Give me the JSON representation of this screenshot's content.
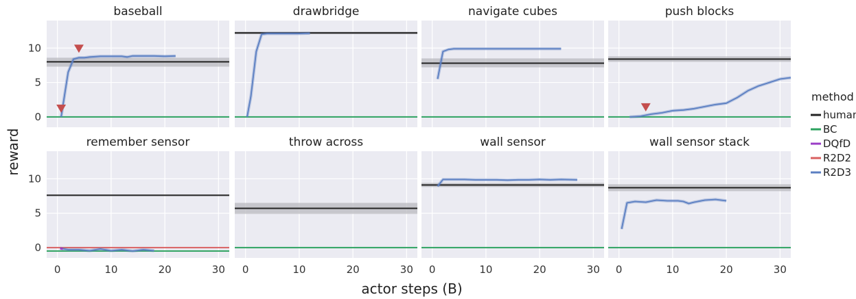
{
  "figure": {
    "xlabel": "actor steps (B)",
    "ylabel": "reward",
    "legend": {
      "title": "method",
      "entries": [
        {
          "name": "human",
          "color": "#222222"
        },
        {
          "name": "BC",
          "color": "#2ca25f"
        },
        {
          "name": "DQfD",
          "color": "#9a3cc6"
        },
        {
          "name": "R2D2",
          "color": "#d95f5f"
        },
        {
          "name": "R2D3",
          "color": "#5b7fc2"
        }
      ]
    },
    "colors": {
      "panel_bg": "#ebebf2",
      "grid": "#ffffff",
      "band": "#b9b9bf",
      "marker": "#c44e4e"
    }
  },
  "chart_data": [
    {
      "type": "line",
      "title": "baseball",
      "xlim": [
        -2,
        32
      ],
      "ylim": [
        -1.5,
        14
      ],
      "xticks": [
        0,
        10,
        20,
        30
      ],
      "yticks": [
        0,
        5,
        10
      ],
      "human": {
        "value": 8.0,
        "band": [
          7.3,
          8.6
        ]
      },
      "bc": 0,
      "r2d3": {
        "x": [
          0.7,
          1.3,
          2,
          3,
          4,
          5,
          6,
          8,
          10,
          12,
          13,
          14,
          16,
          18,
          20,
          22
        ],
        "y": [
          0,
          3,
          6.5,
          8.4,
          8.6,
          8.6,
          8.7,
          8.8,
          8.8,
          8.8,
          8.7,
          8.85,
          8.85,
          8.85,
          8.8,
          8.85
        ]
      },
      "markers": [
        {
          "x": 0.7,
          "y": 1.2
        },
        {
          "x": 4,
          "y": 9.9
        }
      ]
    },
    {
      "type": "line",
      "title": "drawbridge",
      "xlim": [
        -2,
        32
      ],
      "ylim": [
        -1.5,
        14
      ],
      "xticks": [
        0,
        10,
        20,
        30
      ],
      "yticks": [
        0,
        5,
        10
      ],
      "human": {
        "value": 12.2,
        "band": [
          12.0,
          12.4
        ]
      },
      "bc": 0,
      "r2d3": {
        "x": [
          0.3,
          1,
          2,
          3,
          4,
          5,
          6,
          8,
          10,
          12
        ],
        "y": [
          0,
          3,
          9.5,
          12.0,
          12.1,
          12.1,
          12.1,
          12.1,
          12.1,
          12.15
        ]
      },
      "markers": []
    },
    {
      "type": "line",
      "title": "navigate cubes",
      "xlim": [
        -2,
        32
      ],
      "ylim": [
        -1.5,
        14
      ],
      "xticks": [
        0,
        10,
        20,
        30
      ],
      "yticks": [
        0,
        5,
        10
      ],
      "human": {
        "value": 7.8,
        "band": [
          7.2,
          8.5
        ]
      },
      "bc": 0,
      "r2d3": {
        "x": [
          1,
          2,
          3,
          4,
          6,
          8,
          10,
          14,
          18,
          22,
          24
        ],
        "y": [
          5.5,
          9.5,
          9.8,
          9.9,
          9.9,
          9.9,
          9.9,
          9.9,
          9.9,
          9.9,
          9.9
        ]
      },
      "markers": []
    },
    {
      "type": "line",
      "title": "push blocks",
      "xlim": [
        -2,
        32
      ],
      "ylim": [
        -1.5,
        14
      ],
      "xticks": [
        0,
        10,
        20,
        30
      ],
      "yticks": [
        0,
        5,
        10
      ],
      "human": {
        "value": 8.4,
        "band": [
          8.0,
          8.8
        ]
      },
      "bc": 0,
      "r2d3": {
        "x": [
          2,
          4,
          6,
          8,
          10,
          12,
          14,
          16,
          18,
          20,
          22,
          24,
          26,
          28,
          30,
          32
        ],
        "y": [
          0,
          0.1,
          0.4,
          0.6,
          0.9,
          1.0,
          1.2,
          1.5,
          1.8,
          2.0,
          2.8,
          3.8,
          4.5,
          5.0,
          5.5,
          5.7
        ]
      },
      "markers": [
        {
          "x": 5,
          "y": 1.4
        }
      ]
    },
    {
      "type": "line",
      "title": "remember sensor",
      "xlim": [
        -2,
        32
      ],
      "ylim": [
        -1.5,
        14
      ],
      "xticks": [
        0,
        10,
        20,
        30
      ],
      "yticks": [
        0,
        5,
        10
      ],
      "human": {
        "value": 7.6,
        "band": [
          7.5,
          7.7
        ]
      },
      "bc": -0.5,
      "r2d2": 0,
      "r2d3": {
        "x": [
          0.5,
          2,
          4,
          6,
          8,
          10,
          12,
          14,
          16,
          18
        ],
        "y": [
          -0.1,
          -0.3,
          -0.3,
          -0.45,
          -0.2,
          -0.45,
          -0.3,
          -0.5,
          -0.3,
          -0.45
        ]
      },
      "dqfd": {
        "x": [
          0.5,
          1
        ],
        "y": [
          -0.1,
          -0.2
        ]
      },
      "markers": []
    },
    {
      "type": "line",
      "title": "throw across",
      "xlim": [
        -2,
        32
      ],
      "ylim": [
        -1.5,
        14
      ],
      "xticks": [
        0,
        10,
        20,
        30
      ],
      "yticks": [
        0,
        5,
        10
      ],
      "human": {
        "value": 5.7,
        "band": [
          4.9,
          6.5
        ]
      },
      "bc": 0,
      "markers": []
    },
    {
      "type": "line",
      "title": "wall sensor",
      "xlim": [
        -2,
        32
      ],
      "ylim": [
        -1.5,
        14
      ],
      "xticks": [
        0,
        10,
        20,
        30
      ],
      "yticks": [
        0,
        5,
        10
      ],
      "human": {
        "value": 9.1,
        "band": [
          8.8,
          9.4
        ]
      },
      "bc": 0,
      "r2d3": {
        "x": [
          1,
          2,
          4,
          6,
          8,
          10,
          12,
          14,
          16,
          18,
          20,
          22,
          24,
          27
        ],
        "y": [
          8.9,
          9.9,
          9.9,
          9.9,
          9.85,
          9.85,
          9.85,
          9.8,
          9.85,
          9.85,
          9.9,
          9.85,
          9.9,
          9.85
        ]
      },
      "markers": []
    },
    {
      "type": "line",
      "title": "wall sensor stack",
      "xlim": [
        -2,
        32
      ],
      "ylim": [
        -1.5,
        14
      ],
      "xticks": [
        0,
        10,
        20,
        30
      ],
      "yticks": [
        0,
        5,
        10
      ],
      "human": {
        "value": 8.7,
        "band": [
          8.2,
          9.2
        ]
      },
      "bc": 0,
      "r2d3": {
        "x": [
          0.5,
          1.5,
          3,
          5,
          7,
          9,
          11,
          12,
          13,
          14,
          16,
          18,
          20
        ],
        "y": [
          2.7,
          6.5,
          6.7,
          6.6,
          6.9,
          6.8,
          6.8,
          6.7,
          6.4,
          6.6,
          6.9,
          7.0,
          6.8
        ]
      },
      "markers": []
    }
  ]
}
